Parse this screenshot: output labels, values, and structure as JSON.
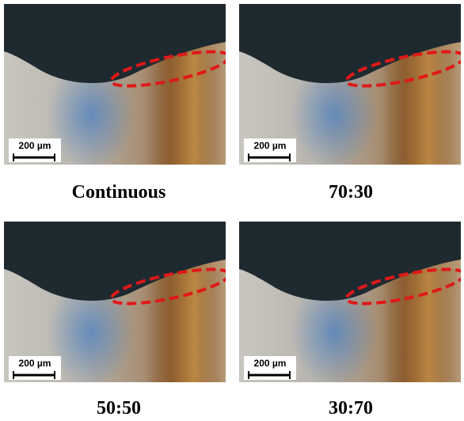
{
  "panels": [
    {
      "caption": "Continuous",
      "scale_label": "200 µm"
    },
    {
      "caption": "70:30",
      "scale_label": "200 µm"
    },
    {
      "caption": "50:50",
      "scale_label": "200 µm"
    },
    {
      "caption": "30:70",
      "scale_label": "200 µm"
    }
  ]
}
